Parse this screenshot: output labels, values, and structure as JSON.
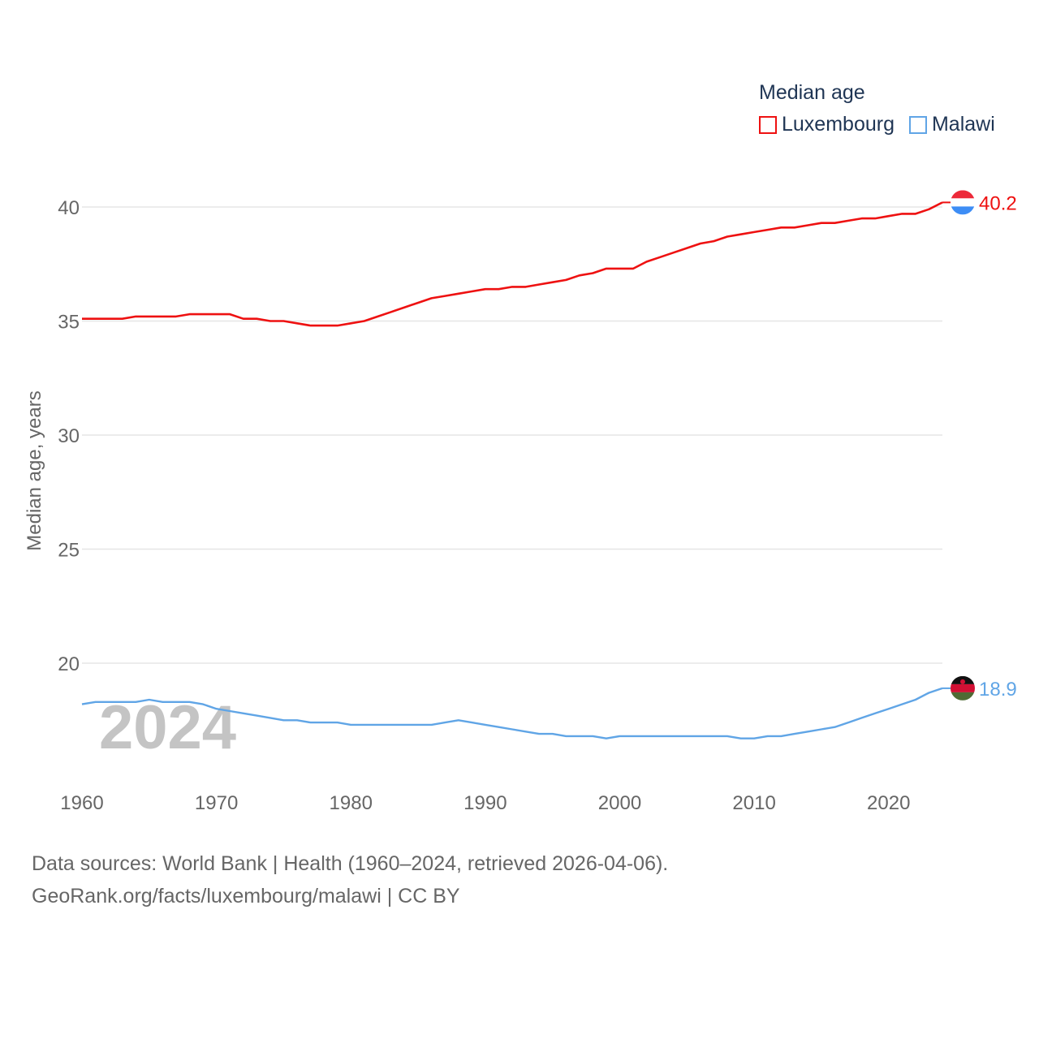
{
  "chart_data": {
    "type": "line",
    "title": "Median age",
    "ylabel": "Median age, years",
    "xlabel": "",
    "xlim": [
      1960,
      2024
    ],
    "ylim": [
      15.5,
      41.5
    ],
    "yticks": [
      20,
      25,
      30,
      35,
      40
    ],
    "xticks": [
      1960,
      1970,
      1980,
      1990,
      2000,
      2010,
      2020
    ],
    "grid": true,
    "legend_position": "top-right",
    "year_watermark": "2024",
    "series": [
      {
        "name": "Luxembourg",
        "color": "#ee1111",
        "end_label": "40.2",
        "flag": "luxembourg-flag",
        "x": [
          1960,
          1961,
          1962,
          1963,
          1964,
          1965,
          1966,
          1967,
          1968,
          1969,
          1970,
          1971,
          1972,
          1973,
          1974,
          1975,
          1976,
          1977,
          1978,
          1979,
          1980,
          1981,
          1982,
          1983,
          1984,
          1985,
          1986,
          1987,
          1988,
          1989,
          1990,
          1991,
          1992,
          1993,
          1994,
          1995,
          1996,
          1997,
          1998,
          1999,
          2000,
          2001,
          2002,
          2003,
          2004,
          2005,
          2006,
          2007,
          2008,
          2009,
          2010,
          2011,
          2012,
          2013,
          2014,
          2015,
          2016,
          2017,
          2018,
          2019,
          2020,
          2021,
          2022,
          2023,
          2024
        ],
        "values": [
          35.1,
          35.1,
          35.1,
          35.1,
          35.2,
          35.2,
          35.2,
          35.2,
          35.3,
          35.3,
          35.3,
          35.3,
          35.1,
          35.1,
          35.0,
          35.0,
          34.9,
          34.8,
          34.8,
          34.8,
          34.9,
          35.0,
          35.2,
          35.4,
          35.6,
          35.8,
          36.0,
          36.1,
          36.2,
          36.3,
          36.4,
          36.4,
          36.5,
          36.5,
          36.6,
          36.7,
          36.8,
          37.0,
          37.1,
          37.3,
          37.3,
          37.3,
          37.6,
          37.8,
          38.0,
          38.2,
          38.4,
          38.5,
          38.7,
          38.8,
          38.9,
          39.0,
          39.1,
          39.1,
          39.2,
          39.3,
          39.3,
          39.4,
          39.5,
          39.5,
          39.6,
          39.7,
          39.7,
          39.9,
          40.2
        ]
      },
      {
        "name": "Malawi",
        "color": "#60a5e6",
        "end_label": "18.9",
        "flag": "malawi-flag",
        "x": [
          1960,
          1961,
          1962,
          1963,
          1964,
          1965,
          1966,
          1967,
          1968,
          1969,
          1970,
          1971,
          1972,
          1973,
          1974,
          1975,
          1976,
          1977,
          1978,
          1979,
          1980,
          1981,
          1982,
          1983,
          1984,
          1985,
          1986,
          1987,
          1988,
          1989,
          1990,
          1991,
          1992,
          1993,
          1994,
          1995,
          1996,
          1997,
          1998,
          1999,
          2000,
          2001,
          2002,
          2003,
          2004,
          2005,
          2006,
          2007,
          2008,
          2009,
          2010,
          2011,
          2012,
          2013,
          2014,
          2015,
          2016,
          2017,
          2018,
          2019,
          2020,
          2021,
          2022,
          2023,
          2024
        ],
        "values": [
          18.2,
          18.3,
          18.3,
          18.3,
          18.3,
          18.4,
          18.3,
          18.3,
          18.3,
          18.2,
          18.0,
          17.9,
          17.8,
          17.7,
          17.6,
          17.5,
          17.5,
          17.4,
          17.4,
          17.4,
          17.3,
          17.3,
          17.3,
          17.3,
          17.3,
          17.3,
          17.3,
          17.4,
          17.5,
          17.4,
          17.3,
          17.2,
          17.1,
          17.0,
          16.9,
          16.9,
          16.8,
          16.8,
          16.8,
          16.7,
          16.8,
          16.8,
          16.8,
          16.8,
          16.8,
          16.8,
          16.8,
          16.8,
          16.8,
          16.7,
          16.7,
          16.8,
          16.8,
          16.9,
          17.0,
          17.1,
          17.2,
          17.4,
          17.6,
          17.8,
          18.0,
          18.2,
          18.4,
          18.7,
          18.9
        ]
      }
    ]
  },
  "footer": {
    "line1": "Data sources: World Bank | Health (1960–2024, retrieved 2026-04-06).",
    "line2": "GeoRank.org/facts/luxembourg/malawi | CC BY"
  }
}
